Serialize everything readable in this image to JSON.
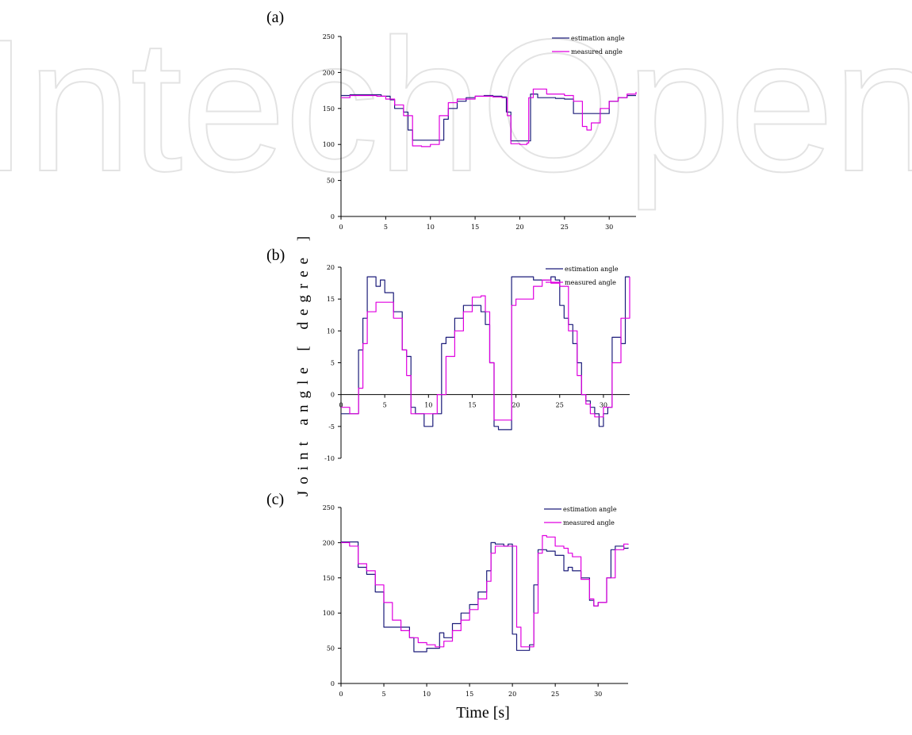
{
  "watermark": {
    "text": "IntechOpen",
    "color": "#e3e3e3"
  },
  "figure": {
    "ylabel": "Joint angle [ degree ]",
    "xlabel": "Time [s]"
  },
  "colors": {
    "estimation": "#1c1c7a",
    "measured": "#e000e0"
  },
  "chart_data": [
    {
      "type": "line",
      "label": "(a)",
      "xlim": [
        0,
        33
      ],
      "ylim": [
        0,
        250
      ],
      "xticks": [
        0,
        5,
        10,
        15,
        20,
        25,
        30
      ],
      "yticks": [
        0,
        50,
        100,
        150,
        200,
        250
      ],
      "legend": "top-right",
      "series": [
        {
          "name": "estimation angle",
          "x": [
            0,
            1,
            3,
            4.5,
            5.5,
            6,
            7,
            7.5,
            8,
            9,
            10,
            11,
            11.5,
            12,
            13,
            14,
            15,
            16,
            17,
            18,
            18.5,
            19,
            20,
            21,
            21.2,
            22,
            24,
            25,
            26,
            27,
            28,
            29,
            30,
            31,
            32,
            33
          ],
          "y": [
            168,
            169,
            169,
            167,
            162,
            150,
            145,
            120,
            106,
            106,
            106,
            106,
            135,
            150,
            160,
            165,
            167,
            168,
            167,
            166,
            145,
            105,
            105,
            105,
            170,
            165,
            164,
            163,
            143,
            143,
            143,
            143,
            160,
            165,
            168,
            168
          ]
        },
        {
          "name": "measured angle",
          "x": [
            0,
            1,
            3,
            4,
            5,
            6,
            7,
            8,
            9,
            10,
            11,
            12,
            13,
            15,
            17,
            18,
            18.6,
            19,
            20,
            20.8,
            21,
            21.5,
            22,
            23,
            25,
            26,
            27,
            27.5,
            28,
            29,
            30,
            31,
            32,
            33
          ],
          "y": [
            165,
            168,
            168,
            167,
            163,
            155,
            140,
            98,
            97,
            100,
            140,
            158,
            163,
            167,
            166,
            165,
            140,
            101,
            100,
            102,
            165,
            177,
            177,
            170,
            168,
            160,
            125,
            120,
            130,
            150,
            160,
            165,
            170,
            173
          ]
        }
      ]
    },
    {
      "type": "line",
      "label": "(b)",
      "xlim": [
        0,
        33
      ],
      "ylim": [
        -10,
        20
      ],
      "xticks": [
        0,
        5,
        10,
        15,
        20,
        25,
        30
      ],
      "yticks": [
        -10,
        -5,
        0,
        5,
        10,
        15,
        20
      ],
      "legend": "top-right",
      "series": [
        {
          "name": "estimation angle",
          "x": [
            0,
            1,
            1.5,
            2,
            2.5,
            3,
            3.5,
            4,
            4.5,
            5,
            6,
            7,
            7.5,
            8,
            8.5,
            9,
            9.5,
            10,
            10.5,
            11,
            11.5,
            12,
            13,
            14,
            15,
            16,
            16.5,
            17,
            17.5,
            18,
            18.5,
            19,
            19.5,
            20,
            21,
            22,
            23,
            24,
            24.5,
            25,
            25.5,
            26,
            26.5,
            27,
            27.5,
            28,
            28.5,
            29,
            29.5,
            30,
            30.5,
            31,
            32,
            32.5,
            33
          ],
          "y": [
            -3,
            -3,
            -3,
            7,
            12,
            18.5,
            18.5,
            17,
            18,
            16,
            13,
            7,
            6,
            -2,
            -3,
            -3,
            -5,
            -5,
            -3,
            -3,
            8,
            9,
            12,
            14,
            14,
            13,
            11,
            5,
            -5,
            -5.5,
            -5.5,
            -5.5,
            18.5,
            18.5,
            18.5,
            18,
            18,
            18.5,
            18,
            14,
            12,
            11,
            8,
            5,
            0,
            -1,
            -2,
            -3,
            -5,
            -3,
            -2,
            9,
            8,
            18.5,
            18.5
          ]
        },
        {
          "name": "measured angle",
          "x": [
            0,
            1,
            1.5,
            2,
            2.5,
            3,
            4,
            5,
            6,
            7,
            7.5,
            8,
            9,
            10,
            11,
            12,
            13,
            14,
            15,
            16,
            16.5,
            17,
            17.5,
            18,
            18.5,
            19,
            19.5,
            20,
            21,
            22,
            23,
            24,
            25,
            26,
            27,
            27.5,
            28,
            28.5,
            29,
            30,
            31,
            32,
            33
          ],
          "y": [
            -2,
            -3,
            -3,
            1,
            8,
            13,
            14.5,
            14.5,
            12,
            7,
            3,
            -3,
            -3,
            -3,
            0,
            6,
            10,
            13,
            15.3,
            15.5,
            13,
            5,
            -4,
            -4,
            -4,
            -4,
            14,
            15,
            15,
            17,
            18,
            17.5,
            17,
            10,
            3,
            0,
            -1.5,
            -3,
            -3.5,
            -2,
            5,
            12,
            18.5
          ]
        }
      ]
    },
    {
      "type": "line",
      "label": "(c)",
      "xlim": [
        0,
        33.5
      ],
      "ylim": [
        0,
        250
      ],
      "xticks": [
        0,
        5,
        10,
        15,
        20,
        25,
        30
      ],
      "yticks": [
        0,
        50,
        100,
        150,
        200,
        250
      ],
      "legend": "top-right",
      "series": [
        {
          "name": "estimation angle",
          "x": [
            0,
            1,
            1.8,
            2,
            3,
            4,
            5,
            6,
            7,
            8,
            8.5,
            9,
            10,
            11,
            11.5,
            12,
            13,
            14,
            15,
            16,
            17,
            17.5,
            18,
            19,
            19.5,
            20,
            20.5,
            21,
            22,
            22.5,
            23,
            24,
            25,
            26,
            26.5,
            27,
            28,
            29,
            29.5,
            30,
            31,
            31.5,
            32,
            33,
            33.5
          ],
          "y": [
            201,
            201,
            201,
            165,
            155,
            130,
            80,
            80,
            80,
            65,
            45,
            45,
            50,
            50,
            72,
            65,
            85,
            100,
            112,
            130,
            160,
            200,
            198,
            195,
            198,
            70,
            47,
            47,
            55,
            140,
            190,
            188,
            182,
            160,
            165,
            160,
            150,
            118,
            110,
            115,
            150,
            190,
            195,
            192,
            193
          ]
        },
        {
          "name": "measured angle",
          "x": [
            0,
            1,
            2,
            3,
            4,
            5,
            6,
            7,
            8,
            9,
            10,
            11,
            12,
            13,
            14,
            15,
            16,
            17,
            17.5,
            18,
            19,
            20,
            20.5,
            21,
            22,
            22.5,
            23,
            23.5,
            24,
            25,
            26,
            26.5,
            27,
            28,
            29,
            29.5,
            30,
            31,
            32,
            33,
            33.5
          ],
          "y": [
            200,
            195,
            170,
            160,
            140,
            115,
            90,
            75,
            65,
            58,
            55,
            52,
            60,
            75,
            90,
            105,
            120,
            145,
            185,
            195,
            195,
            195,
            80,
            52,
            52,
            100,
            185,
            210,
            208,
            195,
            192,
            185,
            180,
            148,
            120,
            110,
            115,
            150,
            190,
            198,
            197
          ]
        }
      ]
    }
  ]
}
